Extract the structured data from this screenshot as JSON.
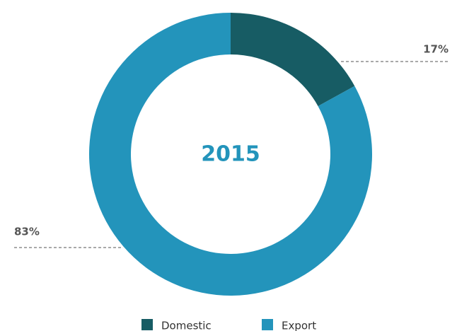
{
  "chart_data": {
    "type": "donut",
    "center_label": "2015",
    "categories": [
      "Domestic",
      "Export"
    ],
    "values": [
      17,
      83
    ],
    "value_labels": [
      "17%",
      "83%"
    ],
    "colors": [
      "#175c64",
      "#2394bb"
    ]
  }
}
